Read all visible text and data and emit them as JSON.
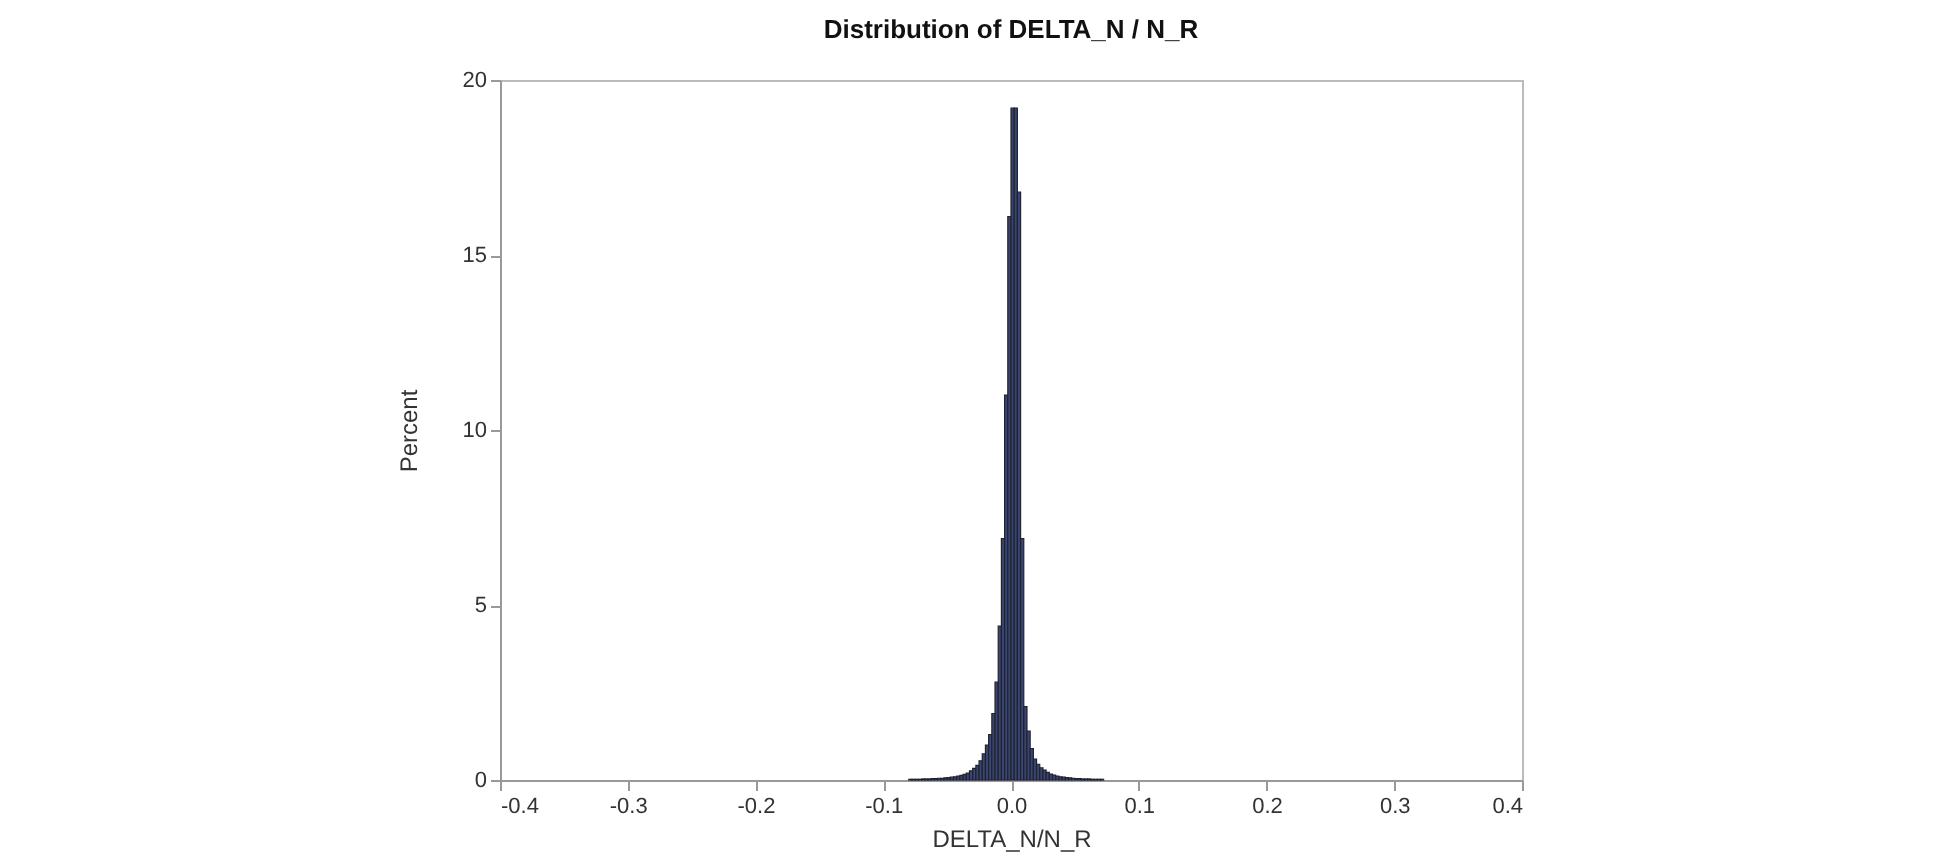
{
  "chart_data": {
    "type": "histogram",
    "title": "Distribution of DELTA_N / N_R",
    "xlabel": "DELTA_N/N_R",
    "ylabel": "Percent",
    "bins": [
      -0.08,
      -0.0775,
      -0.075,
      -0.0725,
      -0.07,
      -0.0675,
      -0.065,
      -0.0625,
      -0.06,
      -0.0575,
      -0.055,
      -0.0525,
      -0.05,
      -0.0475,
      -0.045,
      -0.0425,
      -0.04,
      -0.0375,
      -0.035,
      -0.0325,
      -0.03,
      -0.0275,
      -0.025,
      -0.0225,
      -0.02,
      -0.0175,
      -0.015,
      -0.0125,
      -0.01,
      -0.0075,
      -0.005,
      -0.0025,
      0,
      0.0025,
      0.005,
      0.0075,
      0.01,
      0.0125,
      0.015,
      0.0175,
      0.02,
      0.0225,
      0.025,
      0.0275,
      0.03,
      0.0325,
      0.035,
      0.0375,
      0.04,
      0.0425,
      0.045,
      0.0475,
      0.05,
      0.0525,
      0.055,
      0.0575,
      0.06,
      0.0625,
      0.065,
      0.0675,
      0.07,
      0.0725
    ],
    "values": [
      0.02,
      0.02,
      0.02,
      0.02,
      0.03,
      0.03,
      0.03,
      0.04,
      0.04,
      0.05,
      0.05,
      0.06,
      0.07,
      0.08,
      0.09,
      0.11,
      0.13,
      0.16,
      0.2,
      0.26,
      0.33,
      0.42,
      0.55,
      0.75,
      1.0,
      1.3,
      1.9,
      2.8,
      4.4,
      6.9,
      11.0,
      16.1,
      19.2,
      19.2,
      16.8,
      6.9,
      2.1,
      1.4,
      0.9,
      0.6,
      0.45,
      0.35,
      0.28,
      0.22,
      0.17,
      0.14,
      0.11,
      0.09,
      0.08,
      0.07,
      0.06,
      0.05,
      0.04,
      0.04,
      0.03,
      0.03,
      0.03,
      0.02,
      0.02,
      0.02,
      0.02
    ],
    "color": "#3b4670",
    "xlim": [
      -0.4,
      0.4
    ],
    "xticks": [
      -0.4,
      -0.3,
      -0.2,
      -0.1,
      {
        "value": 0,
        "label": "0.0"
      },
      0.1,
      0.2,
      0.3,
      0.4
    ],
    "ylim": [
      0,
      20
    ],
    "yticks": [
      0,
      5,
      10,
      15,
      20
    ],
    "grid": false
  }
}
